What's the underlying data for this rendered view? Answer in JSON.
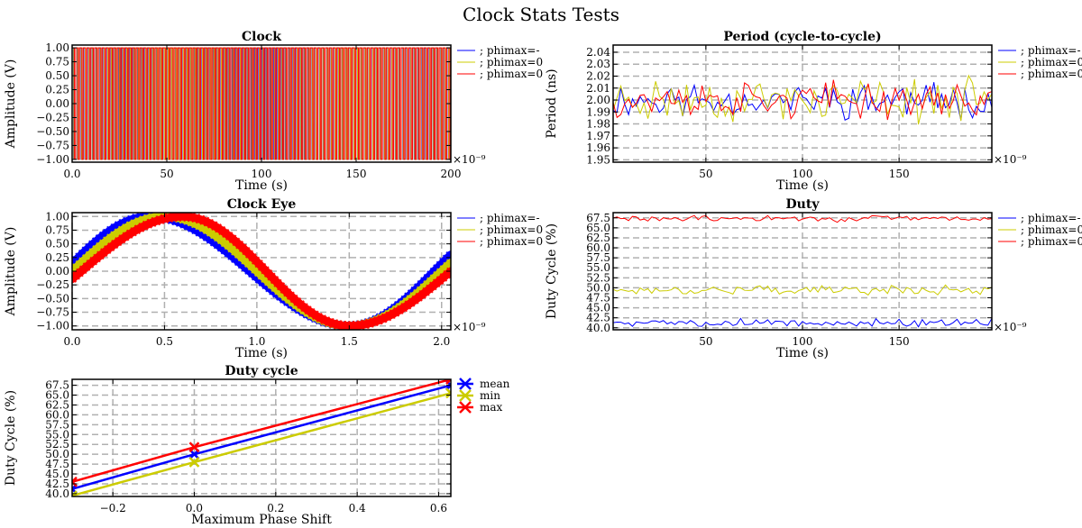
{
  "figure": {
    "title": "Clock Stats Tests"
  },
  "colors": {
    "blue": "#0000ff",
    "yellow": "#cccc00",
    "red": "#ff0000",
    "grid": "#b0b0b0"
  },
  "chart_data": [
    {
      "id": "clock",
      "type": "line",
      "title": "Clock",
      "xlabel": "Time (s)",
      "ylabel": "Amplitude (V)",
      "x_offset_label": "×10⁻⁹",
      "xlim": [
        0,
        200
      ],
      "ylim": [
        -1.05,
        1.05
      ],
      "xticks": [
        0,
        50,
        100,
        150,
        200
      ],
      "xtick_labels": [
        "0.0",
        "50",
        "100",
        "150",
        "200"
      ],
      "yticks": [
        -1.0,
        -0.75,
        -0.5,
        -0.25,
        0.0,
        0.25,
        0.5,
        0.75,
        1.0
      ],
      "ytick_labels": [
        "−1.00",
        "−0.75",
        "−0.50",
        "−0.25",
        "0.00",
        "0.25",
        "0.50",
        "0.75",
        "1.00"
      ],
      "grid": false,
      "legend_position": "right-outside",
      "series": [
        {
          "name": "; phimax=-",
          "color": "blue",
          "kind": "square_wave",
          "period": 2.0,
          "duty": 0.42
        },
        {
          "name": "; phimax=0",
          "color": "yellow",
          "kind": "square_wave",
          "period": 2.0,
          "duty": 0.5
        },
        {
          "name": "; phimax=0",
          "color": "red",
          "kind": "square_wave",
          "period": 2.0,
          "duty": 0.67
        }
      ]
    },
    {
      "id": "period",
      "type": "line",
      "title": "Period (cycle-to-cycle)",
      "xlabel": "Time (s)",
      "ylabel": "Period (ns)",
      "x_offset_label": "×10⁻⁹",
      "xlim": [
        2,
        198
      ],
      "ylim": [
        1.948,
        2.046
      ],
      "xticks": [
        50,
        100,
        150
      ],
      "xtick_labels": [
        "50",
        "100",
        "150"
      ],
      "yticks": [
        1.95,
        1.96,
        1.97,
        1.98,
        1.99,
        2.0,
        2.01,
        2.02,
        2.03,
        2.04
      ],
      "ytick_labels": [
        "1.95",
        "1.96",
        "1.97",
        "1.98",
        "1.99",
        "2.00",
        "2.01",
        "2.02",
        "2.03",
        "2.04"
      ],
      "grid": true,
      "legend_position": "right-outside",
      "series": [
        {
          "name": "; phimax=-",
          "color": "blue",
          "mean": 2.0,
          "spread": 0.018,
          "seed": 11
        },
        {
          "name": "; phimax=0",
          "color": "yellow",
          "mean": 2.0,
          "spread": 0.022,
          "seed": 23
        },
        {
          "name": "; phimax=0",
          "color": "red",
          "mean": 2.0,
          "spread": 0.018,
          "seed": 37
        }
      ]
    },
    {
      "id": "eye",
      "type": "line",
      "title": "Clock Eye",
      "xlabel": "Time (s)",
      "ylabel": "Amplitude (V)",
      "x_offset_label": "×10⁻⁹",
      "xlim": [
        0,
        2.05
      ],
      "ylim": [
        -1.07,
        1.07
      ],
      "xticks": [
        0.0,
        0.5,
        1.0,
        1.5,
        2.0
      ],
      "xtick_labels": [
        "0.0",
        "0.5",
        "1.0",
        "1.5",
        "2.0"
      ],
      "yticks": [
        -1.0,
        -0.75,
        -0.5,
        -0.25,
        0.0,
        0.25,
        0.5,
        0.75,
        1.0
      ],
      "ytick_labels": [
        "−1.00",
        "−0.75",
        "−0.50",
        "−0.25",
        "0.00",
        "0.25",
        "0.50",
        "0.75",
        "1.00"
      ],
      "grid": true,
      "legend_position": "right-outside",
      "series": [
        {
          "name": "; phimax=-",
          "color": "blue",
          "peak": 0.42,
          "trough": 1.5
        },
        {
          "name": "; phimax=0",
          "color": "yellow",
          "peak": 0.5,
          "trough": 1.5
        },
        {
          "name": "; phimax=0",
          "color": "red",
          "peak": 0.6,
          "trough": 1.5
        }
      ]
    },
    {
      "id": "duty",
      "type": "line",
      "title": "Duty",
      "xlabel": "Time (s)",
      "ylabel": "Duty Cycle (%)",
      "x_offset_label": "×10⁻⁹",
      "xlim": [
        2,
        198
      ],
      "ylim": [
        39.5,
        68.8
      ],
      "xticks": [
        50,
        100,
        150
      ],
      "xtick_labels": [
        "50",
        "100",
        "150"
      ],
      "yticks": [
        40.0,
        42.5,
        45.0,
        47.5,
        50.0,
        52.5,
        55.0,
        57.5,
        60.0,
        62.5,
        65.0,
        67.5
      ],
      "ytick_labels": [
        "40.0",
        "42.5",
        "45.0",
        "47.5",
        "50.0",
        "52.5",
        "55.0",
        "57.5",
        "60.0",
        "62.5",
        "65.0",
        "67.5"
      ],
      "grid": true,
      "legend_position": "right-outside",
      "series": [
        {
          "name": "; phimax=-",
          "color": "blue",
          "mean": 41.3,
          "spread": 1.2,
          "seed": 5
        },
        {
          "name": "; phimax=0",
          "color": "yellow",
          "mean": 49.5,
          "spread": 1.4,
          "seed": 17
        },
        {
          "name": "; phimax=0",
          "color": "red",
          "mean": 67.3,
          "spread": 1.0,
          "seed": 29
        }
      ]
    },
    {
      "id": "dutycycle",
      "type": "line",
      "title": "Duty cycle",
      "xlabel": "Maximum Phase Shift",
      "ylabel": "Duty Cycle (%)",
      "xlim": [
        -0.3,
        0.63
      ],
      "ylim": [
        39.3,
        69.0
      ],
      "xticks": [
        -0.2,
        0.0,
        0.2,
        0.4,
        0.6
      ],
      "xtick_labels": [
        "−0.2",
        "0.0",
        "0.2",
        "0.4",
        "0.6"
      ],
      "yticks": [
        40.0,
        42.5,
        45.0,
        47.5,
        50.0,
        52.5,
        55.0,
        57.5,
        60.0,
        62.5,
        65.0,
        67.5
      ],
      "ytick_labels": [
        "40.0",
        "42.5",
        "45.0",
        "47.5",
        "50.0",
        "52.5",
        "55.0",
        "57.5",
        "60.0",
        "62.5",
        "65.0",
        "67.5"
      ],
      "grid": true,
      "legend_position": "right-outside",
      "series": [
        {
          "name": "mean",
          "color": "blue",
          "x": [
            -0.3,
            0.0,
            0.63
          ],
          "y": [
            41.2,
            50.0,
            67.5
          ]
        },
        {
          "name": "min",
          "color": "yellow",
          "x": [
            -0.3,
            0.0,
            0.63
          ],
          "y": [
            39.5,
            48.0,
            65.5
          ]
        },
        {
          "name": "max",
          "color": "red",
          "x": [
            -0.3,
            0.0,
            0.63
          ],
          "y": [
            43.0,
            51.8,
            69.0
          ]
        }
      ]
    }
  ]
}
